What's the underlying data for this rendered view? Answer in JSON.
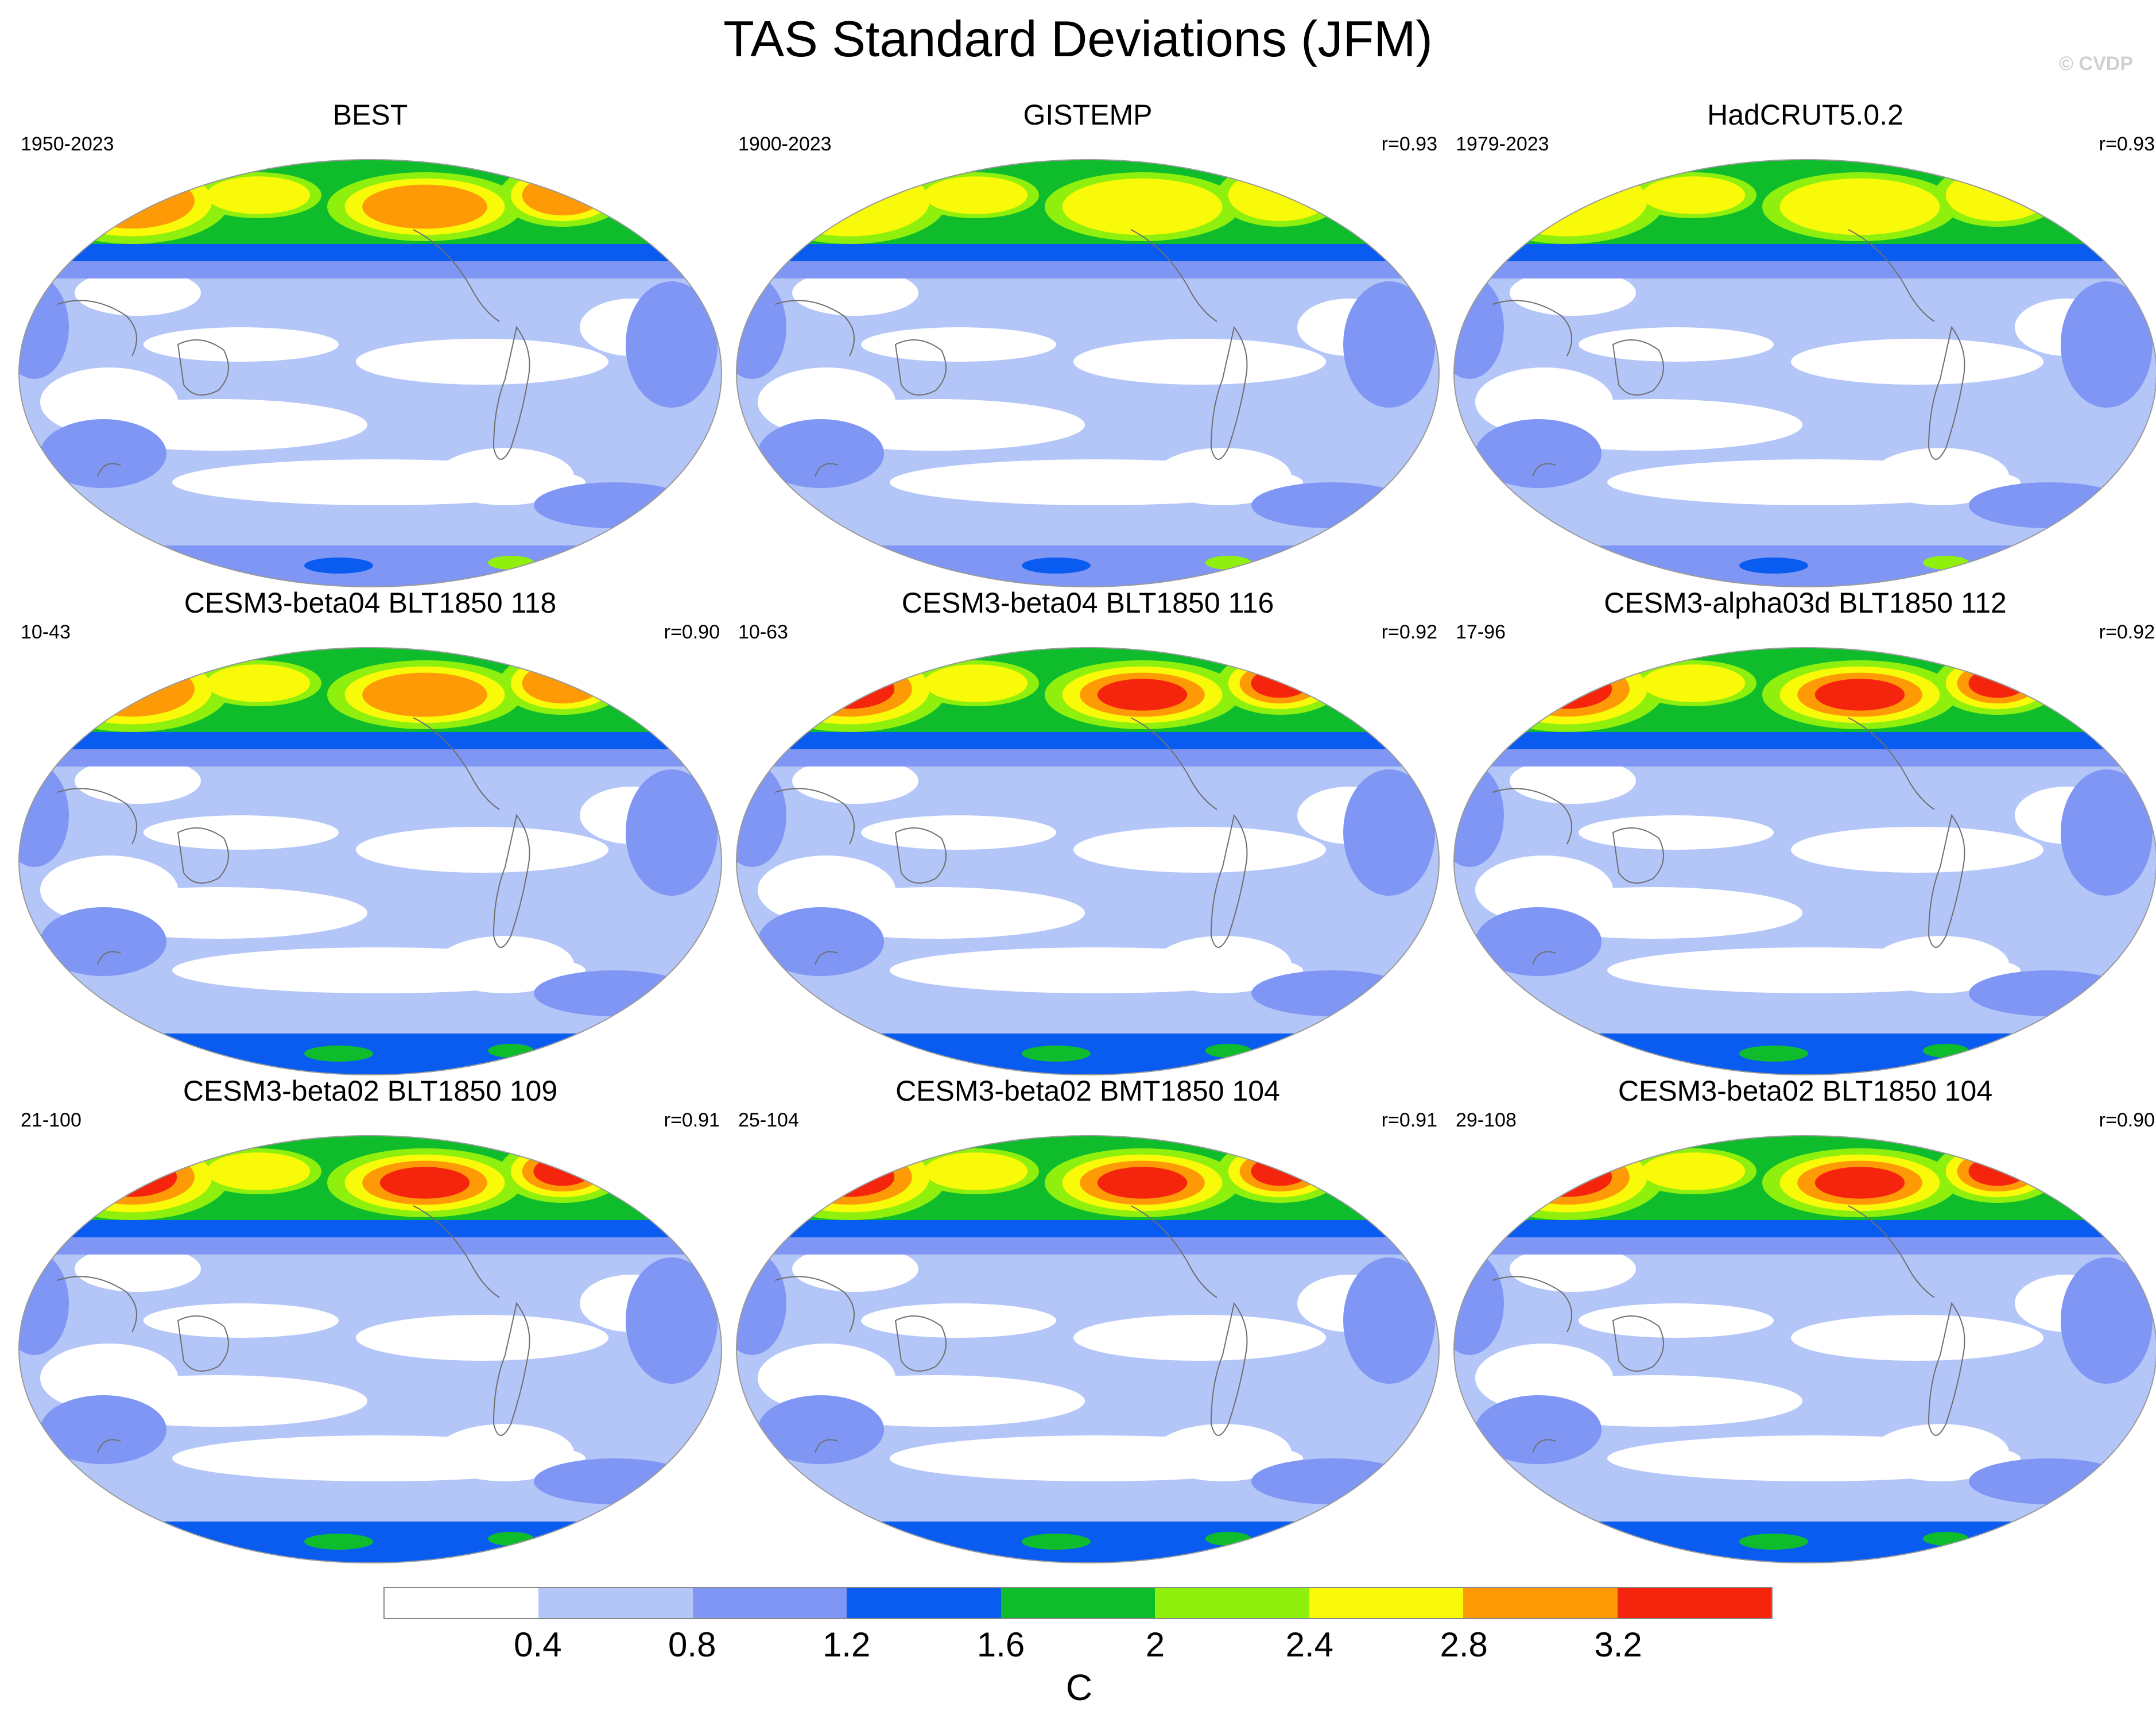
{
  "title": "TAS Standard Deviations (JFM)",
  "credit": "© CVDP",
  "panels": [
    {
      "name": "BEST",
      "years": "1950-2023",
      "corr": "",
      "intensity": 0.7
    },
    {
      "name": "GISTEMP",
      "years": "1900-2023",
      "corr": "r=0.93",
      "intensity": 0.55
    },
    {
      "name": "HadCRUT5.0.2",
      "years": "1979-2023",
      "corr": "r=0.93",
      "intensity": 0.62
    },
    {
      "name": "CESM3-beta04 BLT1850 118",
      "years": "10-43",
      "corr": "r=0.90",
      "intensity": 0.85
    },
    {
      "name": "CESM3-beta04 BLT1850 116",
      "years": "10-63",
      "corr": "r=0.92",
      "intensity": 0.92
    },
    {
      "name": "CESM3-alpha03d BLT1850 112",
      "years": "17-96",
      "corr": "r=0.92",
      "intensity": 0.95
    },
    {
      "name": "CESM3-beta02 BLT1850 109",
      "years": "21-100",
      "corr": "r=0.91",
      "intensity": 0.97
    },
    {
      "name": "CESM3-beta02 BMT1850 104",
      "years": "25-104",
      "corr": "r=0.91",
      "intensity": 0.98
    },
    {
      "name": "CESM3-beta02 BLT1850 104",
      "years": "29-108",
      "corr": "r=0.90",
      "intensity": 0.96
    }
  ],
  "colorbar": {
    "unit": "C",
    "ticks": [
      "0.4",
      "0.8",
      "1.2",
      "1.6",
      "2",
      "2.4",
      "2.8",
      "3.2"
    ],
    "colors": [
      "#ffffff",
      "#b4c5f8",
      "#7f96f5",
      "#0a5cf0",
      "#0fbd2c",
      "#90f00d",
      "#f9f90a",
      "#fd9a06",
      "#f5250d"
    ]
  }
}
